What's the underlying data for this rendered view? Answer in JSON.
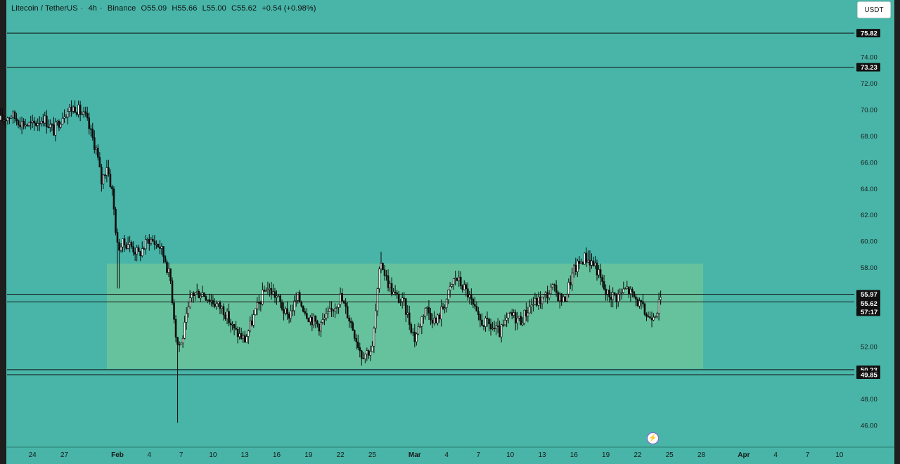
{
  "header": {
    "symbol": "Litecoin / TetherUS",
    "interval": "4h",
    "exchange": "Binance",
    "open": "O55.09",
    "high": "H55.66",
    "low": "L55.00",
    "close": "C55.62",
    "change": "+0.54 (+0.98%)"
  },
  "quote_button": "USDT",
  "alert_icon": "lightning-icon",
  "colors": {
    "background": "#48b5a8",
    "range_zone": "#6cc49a",
    "candle": "#0c0c0c",
    "level_line": "#111111"
  },
  "chart_data": {
    "type": "candlestick",
    "ylim": [
      45.2,
      77.2
    ],
    "y_ticks": [
      "74.00",
      "72.00",
      "70.00",
      "68.00",
      "66.00",
      "64.00",
      "62.00",
      "60.00",
      "58.00",
      "52.00",
      "48.00",
      "46.00"
    ],
    "horizontal_levels": [
      {
        "value": 75.82,
        "label": "75.82"
      },
      {
        "value": 73.23,
        "label": "73.23"
      },
      {
        "value": 55.97,
        "label": "55.97"
      },
      {
        "value": 55.38,
        "label": "55.38"
      },
      {
        "value": 50.23,
        "label": "50.23"
      },
      {
        "value": 49.85,
        "label": "49.85"
      }
    ],
    "last_price": {
      "value": 55.62,
      "label": "55.62",
      "countdown": "57:17"
    },
    "range_zone": {
      "from_date": "Feb 1",
      "to_date": "Mar 29",
      "low": 50.3,
      "high": 58.3
    },
    "x_labels": [
      {
        "label": "24",
        "day": -8
      },
      {
        "label": "27",
        "day": -5
      },
      {
        "label": "Feb",
        "day": 0,
        "major": true
      },
      {
        "label": "4",
        "day": 3
      },
      {
        "label": "7",
        "day": 6
      },
      {
        "label": "10",
        "day": 9
      },
      {
        "label": "13",
        "day": 12
      },
      {
        "label": "16",
        "day": 15
      },
      {
        "label": "19",
        "day": 18
      },
      {
        "label": "22",
        "day": 21
      },
      {
        "label": "25",
        "day": 24
      },
      {
        "label": "Mar",
        "day": 28,
        "major": true
      },
      {
        "label": "4",
        "day": 31
      },
      {
        "label": "7",
        "day": 34
      },
      {
        "label": "10",
        "day": 37
      },
      {
        "label": "13",
        "day": 40
      },
      {
        "label": "16",
        "day": 43
      },
      {
        "label": "19",
        "day": 46
      },
      {
        "label": "22",
        "day": 49
      },
      {
        "label": "25",
        "day": 52
      },
      {
        "label": "28",
        "day": 55
      },
      {
        "label": "Apr",
        "day": 59,
        "major": true
      },
      {
        "label": "4",
        "day": 62
      },
      {
        "label": "7",
        "day": 65
      },
      {
        "label": "10",
        "day": 68
      }
    ],
    "price_path": [
      [
        -11,
        69.2
      ],
      [
        -10,
        69.6
      ],
      [
        -9,
        69.0
      ],
      [
        -8,
        68.8
      ],
      [
        -7,
        69.4
      ],
      [
        -6,
        68.4
      ],
      [
        -5,
        69.8
      ],
      [
        -4,
        70.2
      ],
      [
        -3,
        69.4
      ],
      [
        -2,
        67.0
      ],
      [
        -1.5,
        64.5
      ],
      [
        -1,
        65.8
      ],
      [
        -0.5,
        63.8
      ],
      [
        0,
        59.6
      ],
      [
        1,
        59.9
      ],
      [
        2,
        59.0
      ],
      [
        3,
        60.2
      ],
      [
        4,
        59.6
      ],
      [
        4.5,
        58.6
      ],
      [
        5,
        57.0
      ],
      [
        5.6,
        52.2
      ],
      [
        6,
        52.2
      ],
      [
        7,
        56.0
      ],
      [
        8,
        56.1
      ],
      [
        9,
        55.4
      ],
      [
        10,
        54.8
      ],
      [
        11,
        53.2
      ],
      [
        12,
        52.5
      ],
      [
        13,
        54.6
      ],
      [
        14,
        56.5
      ],
      [
        15,
        55.8
      ],
      [
        16,
        54.2
      ],
      [
        17,
        55.7
      ],
      [
        18,
        54.3
      ],
      [
        19,
        53.6
      ],
      [
        20,
        54.5
      ],
      [
        21,
        55.8
      ],
      [
        22,
        53.8
      ],
      [
        23,
        51.4
      ],
      [
        24,
        51.8
      ],
      [
        24.8,
        58.6
      ],
      [
        25.4,
        57.0
      ],
      [
        26,
        56.0
      ],
      [
        27,
        55.2
      ],
      [
        28,
        52.6
      ],
      [
        29,
        55.0
      ],
      [
        30,
        53.8
      ],
      [
        31,
        55.6
      ],
      [
        31.8,
        57.3
      ],
      [
        32.5,
        56.6
      ],
      [
        33,
        56.0
      ],
      [
        34,
        54.0
      ],
      [
        35,
        53.6
      ],
      [
        36,
        53.0
      ],
      [
        37,
        54.4
      ],
      [
        38,
        54.0
      ],
      [
        39,
        55.2
      ],
      [
        40,
        55.6
      ],
      [
        41,
        56.4
      ],
      [
        42,
        55.4
      ],
      [
        43,
        57.8
      ],
      [
        44,
        58.8
      ],
      [
        45,
        58.2
      ],
      [
        46,
        56.0
      ],
      [
        47,
        55.8
      ],
      [
        48,
        56.4
      ],
      [
        49,
        55.4
      ],
      [
        50,
        54.2
      ],
      [
        50.8,
        54.8
      ],
      [
        51.2,
        55.62
      ]
    ]
  }
}
